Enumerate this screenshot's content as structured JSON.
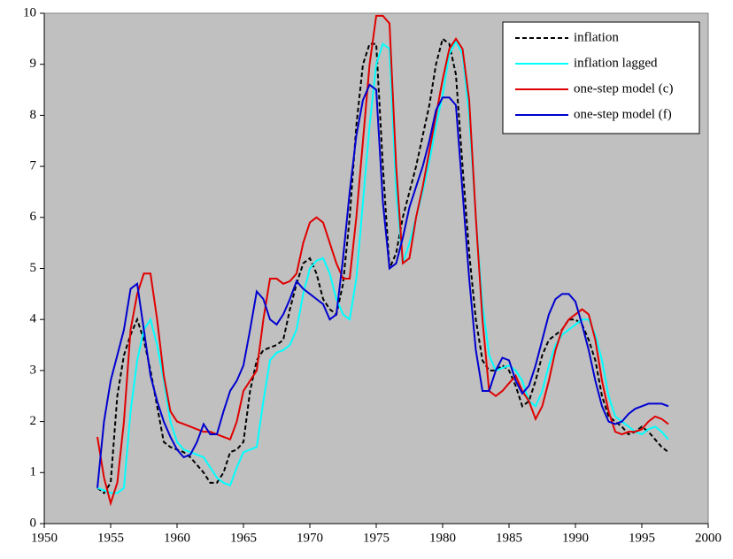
{
  "chart_data": {
    "type": "line",
    "x": [
      1954,
      1954.5,
      1955,
      1955.5,
      1956,
      1956.5,
      1957,
      1957.5,
      1958,
      1958.5,
      1959,
      1959.5,
      1960,
      1960.5,
      1961,
      1961.5,
      1962,
      1962.5,
      1963,
      1963.5,
      1964,
      1964.5,
      1965,
      1965.5,
      1966,
      1966.5,
      1967,
      1967.5,
      1968,
      1968.5,
      1969,
      1969.5,
      1970,
      1970.5,
      1971,
      1971.5,
      1972,
      1972.5,
      1973,
      1973.5,
      1974,
      1974.5,
      1975,
      1975.5,
      1976,
      1976.5,
      1977,
      1977.5,
      1978,
      1978.5,
      1979,
      1979.5,
      1980,
      1980.5,
      1981,
      1981.5,
      1982,
      1982.5,
      1983,
      1983.5,
      1984,
      1984.5,
      1985,
      1985.5,
      1986,
      1986.5,
      1987,
      1987.5,
      1988,
      1988.5,
      1989,
      1989.5,
      1990,
      1990.5,
      1991,
      1991.5,
      1992,
      1992.5,
      1993,
      1993.5,
      1994,
      1994.5,
      1995,
      1995.5,
      1996,
      1996.5,
      1997
    ],
    "series": [
      {
        "name": "inflation",
        "color": "#000000",
        "dash": true,
        "values": [
          0.7,
          0.6,
          0.8,
          2.5,
          3.3,
          3.7,
          4.0,
          3.6,
          3.0,
          2.3,
          1.6,
          1.5,
          1.45,
          1.4,
          1.3,
          1.15,
          1.0,
          0.8,
          0.8,
          1.0,
          1.4,
          1.45,
          1.6,
          2.6,
          3.2,
          3.4,
          3.45,
          3.5,
          3.6,
          4.2,
          4.7,
          5.1,
          5.2,
          4.9,
          4.4,
          4.2,
          4.1,
          4.7,
          6.0,
          7.8,
          9.0,
          9.4,
          9.4,
          7.0,
          5.0,
          5.3,
          6.0,
          6.5,
          7.0,
          7.6,
          8.2,
          9.0,
          9.5,
          9.4,
          8.8,
          7.0,
          5.3,
          4.0,
          3.2,
          3.0,
          3.0,
          3.1,
          3.0,
          2.7,
          2.3,
          2.4,
          2.8,
          3.3,
          3.6,
          3.7,
          3.8,
          4.0,
          4.0,
          3.9,
          3.6,
          3.2,
          2.5,
          2.1,
          2.0,
          1.9,
          1.75,
          1.8,
          1.9,
          1.8,
          1.65,
          1.5,
          1.4
        ]
      },
      {
        "name": "inflation lagged",
        "color": "#00ffff",
        "dash": false,
        "values": [
          0.7,
          0.65,
          0.6,
          0.6,
          0.7,
          2.2,
          3.2,
          3.8,
          4.0,
          3.5,
          2.8,
          2.0,
          1.6,
          1.45,
          1.4,
          1.35,
          1.3,
          1.1,
          0.9,
          0.8,
          0.75,
          1.1,
          1.4,
          1.45,
          1.5,
          2.4,
          3.2,
          3.35,
          3.4,
          3.5,
          3.8,
          4.5,
          5.0,
          5.15,
          5.2,
          4.9,
          4.4,
          4.1,
          4.0,
          4.8,
          6.3,
          7.8,
          9.0,
          9.4,
          9.3,
          6.5,
          5.1,
          5.5,
          6.0,
          6.5,
          7.1,
          7.8,
          8.4,
          9.2,
          9.45,
          9.2,
          8.0,
          6.0,
          4.3,
          3.3,
          3.0,
          3.05,
          3.1,
          3.0,
          2.8,
          2.4,
          2.3,
          2.6,
          3.1,
          3.5,
          3.7,
          3.8,
          3.9,
          4.0,
          4.0,
          3.7,
          3.2,
          2.5,
          2.1,
          2.0,
          1.9,
          1.8,
          1.75,
          1.85,
          1.9,
          1.8,
          1.65
        ]
      },
      {
        "name": "one-step model (c)",
        "color": "#e00000",
        "dash": false,
        "values": [
          1.7,
          0.9,
          0.4,
          0.8,
          2.0,
          3.8,
          4.5,
          4.9,
          4.9,
          4.0,
          2.9,
          2.2,
          2.0,
          1.95,
          1.9,
          1.85,
          1.8,
          1.8,
          1.75,
          1.7,
          1.65,
          2.0,
          2.6,
          2.8,
          3.0,
          4.0,
          4.8,
          4.8,
          4.7,
          4.75,
          4.9,
          5.5,
          5.9,
          6.0,
          5.9,
          5.5,
          5.1,
          4.8,
          4.8,
          6.0,
          7.5,
          9.0,
          9.95,
          9.95,
          9.8,
          7.0,
          5.1,
          5.2,
          6.0,
          6.6,
          7.3,
          8.0,
          8.7,
          9.3,
          9.5,
          9.3,
          8.3,
          6.0,
          4.0,
          2.6,
          2.5,
          2.6,
          2.75,
          2.9,
          2.6,
          2.4,
          2.05,
          2.3,
          2.8,
          3.4,
          3.8,
          4.0,
          4.1,
          4.2,
          4.1,
          3.6,
          2.8,
          2.2,
          1.8,
          1.75,
          1.8,
          1.8,
          1.85,
          2.0,
          2.1,
          2.05,
          1.95
        ]
      },
      {
        "name": "one-step model (f)",
        "color": "#0000d0",
        "dash": false,
        "values": [
          0.7,
          2.0,
          2.8,
          3.3,
          3.8,
          4.6,
          4.7,
          3.8,
          2.9,
          2.4,
          2.0,
          1.7,
          1.45,
          1.3,
          1.35,
          1.6,
          1.95,
          1.75,
          1.75,
          2.2,
          2.6,
          2.8,
          3.1,
          3.8,
          4.55,
          4.4,
          4.0,
          3.9,
          4.1,
          4.4,
          4.75,
          4.6,
          4.5,
          4.4,
          4.3,
          4.0,
          4.1,
          5.2,
          6.5,
          7.6,
          8.3,
          8.6,
          8.5,
          6.3,
          5.0,
          5.1,
          5.6,
          6.2,
          6.6,
          7.0,
          7.5,
          8.1,
          8.35,
          8.35,
          8.2,
          6.5,
          4.8,
          3.4,
          2.6,
          2.6,
          3.0,
          3.25,
          3.2,
          2.8,
          2.55,
          2.7,
          3.1,
          3.6,
          4.1,
          4.4,
          4.5,
          4.5,
          4.35,
          3.9,
          3.4,
          2.8,
          2.3,
          2.0,
          1.95,
          2.0,
          2.15,
          2.25,
          2.3,
          2.35,
          2.35,
          2.35,
          2.3
        ]
      }
    ],
    "xlim": [
      1950,
      2000
    ],
    "xticks": [
      1950,
      1955,
      1960,
      1965,
      1970,
      1975,
      1980,
      1985,
      1990,
      1995,
      2000
    ],
    "ylim": [
      0,
      10
    ],
    "yticks": [
      0,
      1,
      2,
      3,
      4,
      5,
      6,
      7,
      8,
      9,
      10
    ],
    "plot_background": "#c0c0c0",
    "legend_position": "top-right"
  }
}
